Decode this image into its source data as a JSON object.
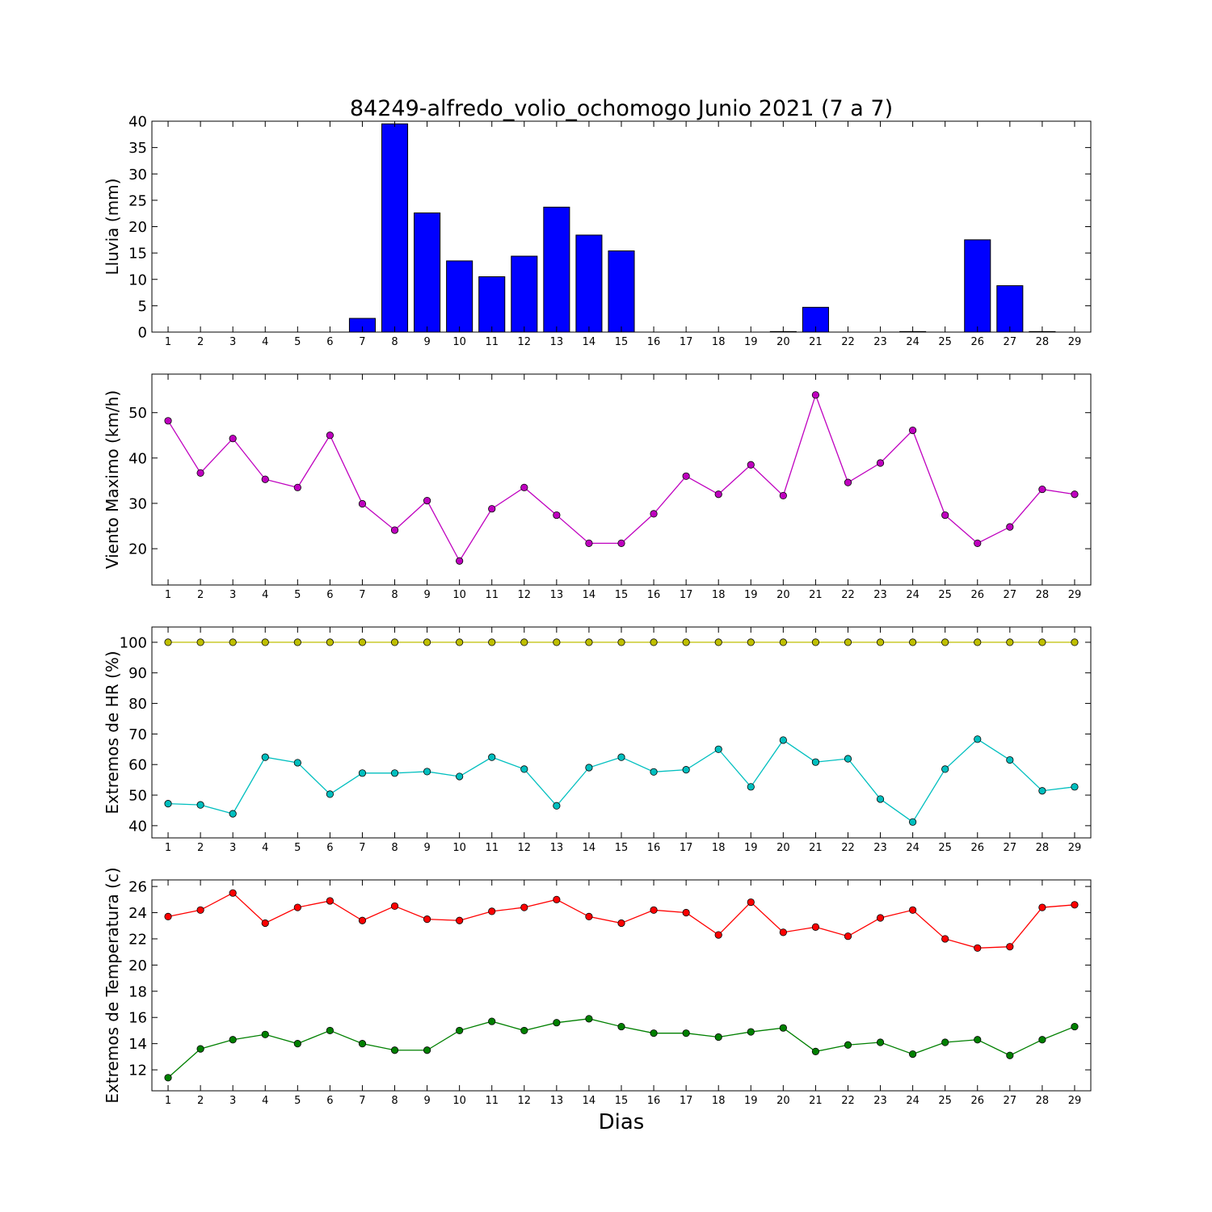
{
  "figure": {
    "title": "84249-alfredo_volio_ochomogo Junio 2021  (7 a 7)",
    "xlabel": "Dias"
  },
  "chart_data": [
    {
      "type": "bar",
      "ylabel": "Lluvia (mm)",
      "xlim": [
        0.5,
        29.5
      ],
      "ylim": [
        0,
        40
      ],
      "yticks": [
        0,
        5,
        10,
        15,
        20,
        25,
        30,
        35,
        40
      ],
      "categories": [
        1,
        2,
        3,
        4,
        5,
        6,
        7,
        8,
        9,
        10,
        11,
        12,
        13,
        14,
        15,
        16,
        17,
        18,
        19,
        20,
        21,
        22,
        23,
        24,
        25,
        26,
        27,
        28,
        29
      ],
      "series": [
        {
          "color": "#0000ff",
          "values": [
            0,
            0,
            0,
            0,
            0,
            0,
            2.6,
            39.5,
            22.6,
            13.5,
            10.5,
            14.4,
            23.7,
            18.4,
            15.4,
            0,
            0,
            0,
            0,
            0.1,
            4.7,
            0,
            0,
            0.1,
            0,
            17.5,
            8.8,
            0.1,
            0
          ]
        }
      ],
      "grid": false
    },
    {
      "type": "line",
      "ylabel": "Viento Maximo (km/h)",
      "xlim": [
        0.5,
        29.5
      ],
      "ylim": [
        12,
        58.5
      ],
      "yticks": [
        20,
        30,
        40,
        50
      ],
      "x": [
        1,
        2,
        3,
        4,
        5,
        6,
        7,
        8,
        9,
        10,
        11,
        12,
        13,
        14,
        15,
        16,
        17,
        18,
        19,
        20,
        21,
        22,
        23,
        24,
        25,
        26,
        27,
        28,
        29
      ],
      "series": [
        {
          "color": "#bf00bf",
          "values": [
            48.2,
            36.7,
            44.3,
            35.3,
            33.5,
            45.0,
            29.9,
            24.1,
            30.6,
            17.3,
            28.8,
            33.5,
            27.4,
            21.2,
            21.2,
            27.7,
            36.0,
            32.0,
            38.5,
            31.7,
            53.9,
            34.6,
            38.9,
            46.1,
            27.4,
            21.2,
            24.8,
            33.1,
            32.0
          ]
        }
      ],
      "grid": false
    },
    {
      "type": "line",
      "ylabel": "Extremos de HR (%)",
      "xlim": [
        0.5,
        29.5
      ],
      "ylim": [
        36,
        105
      ],
      "yticks": [
        40,
        50,
        60,
        70,
        80,
        90,
        100
      ],
      "x": [
        1,
        2,
        3,
        4,
        5,
        6,
        7,
        8,
        9,
        10,
        11,
        12,
        13,
        14,
        15,
        16,
        17,
        18,
        19,
        20,
        21,
        22,
        23,
        24,
        25,
        26,
        27,
        28,
        29
      ],
      "series": [
        {
          "color": "#bfbf00",
          "values": [
            100,
            100,
            100,
            100,
            100,
            100,
            100,
            100,
            100,
            100,
            100,
            100,
            100,
            100,
            100,
            100,
            100,
            100,
            100,
            100,
            100,
            100,
            100,
            100,
            100,
            100,
            100,
            100,
            100
          ]
        },
        {
          "color": "#00bfbf",
          "values": [
            47.2,
            46.8,
            43.9,
            62.4,
            60.6,
            50.3,
            57.2,
            57.2,
            57.7,
            56.1,
            62.4,
            58.5,
            46.5,
            59.0,
            62.4,
            57.6,
            58.3,
            65.0,
            52.7,
            68.0,
            60.8,
            61.9,
            48.7,
            41.2,
            58.5,
            68.3,
            61.5,
            51.4,
            52.7
          ]
        }
      ],
      "grid": false
    },
    {
      "type": "line",
      "ylabel": "Extremos de Temperatura (c)",
      "xlim": [
        0.5,
        29.5
      ],
      "ylim": [
        10.4,
        26.5
      ],
      "yticks": [
        12,
        14,
        16,
        18,
        20,
        22,
        24,
        26
      ],
      "x": [
        1,
        2,
        3,
        4,
        5,
        6,
        7,
        8,
        9,
        10,
        11,
        12,
        13,
        14,
        15,
        16,
        17,
        18,
        19,
        20,
        21,
        22,
        23,
        24,
        25,
        26,
        27,
        28,
        29
      ],
      "series": [
        {
          "color": "#ff0000",
          "values": [
            23.7,
            24.2,
            25.5,
            23.2,
            24.4,
            24.9,
            23.4,
            24.5,
            23.5,
            23.4,
            24.1,
            24.4,
            25.0,
            23.7,
            23.2,
            24.2,
            24.0,
            22.3,
            24.8,
            22.5,
            22.9,
            22.2,
            23.6,
            24.2,
            22.0,
            21.3,
            21.4,
            24.4,
            24.6
          ]
        },
        {
          "color": "#008000",
          "values": [
            11.4,
            13.6,
            14.3,
            14.7,
            14.0,
            15.0,
            14.0,
            13.5,
            13.5,
            15.0,
            15.7,
            15.0,
            15.6,
            15.9,
            15.3,
            14.8,
            14.8,
            14.5,
            14.9,
            15.2,
            13.4,
            13.9,
            14.1,
            13.2,
            14.1,
            14.3,
            13.1,
            14.3,
            15.3
          ]
        }
      ],
      "grid": false
    }
  ]
}
